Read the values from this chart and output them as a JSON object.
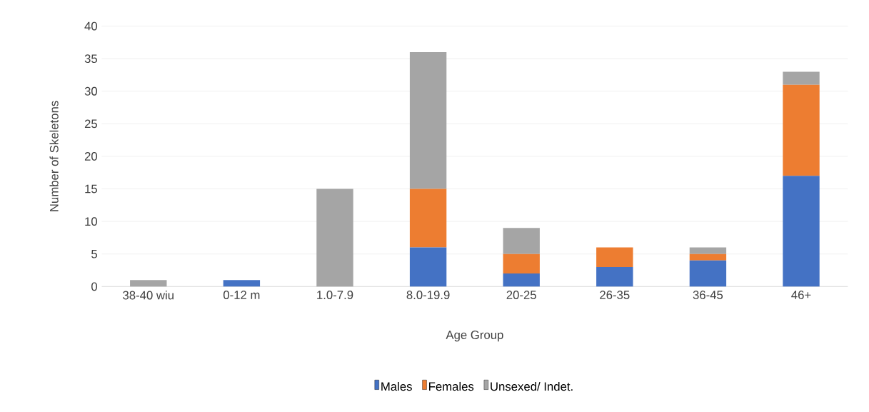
{
  "chart_data": {
    "type": "bar",
    "stacked": true,
    "xlabel": "Age Group",
    "ylabel": "Number of Skeletons",
    "categories": [
      "38-40 wiu",
      "0-12 m",
      "1.0-7.9",
      "8.0-19.9",
      "20-25",
      "26-35",
      "36-45",
      "46+"
    ],
    "series": [
      {
        "name": "Males",
        "color": "#4472c4",
        "values": [
          0,
          1,
          0,
          6,
          2,
          3,
          4,
          17
        ]
      },
      {
        "name": "Females",
        "color": "#ed7d31",
        "values": [
          0,
          0,
          0,
          9,
          3,
          3,
          1,
          14
        ]
      },
      {
        "name": "Unsexed/ Indet.",
        "color": "#a5a5a5",
        "values": [
          1,
          0,
          15,
          21,
          4,
          0,
          1,
          2
        ]
      }
    ],
    "ylim": [
      0,
      40
    ],
    "yticks": [
      0,
      5,
      10,
      15,
      20,
      25,
      30,
      35,
      40
    ],
    "grid": "y",
    "legend": "bottom"
  }
}
